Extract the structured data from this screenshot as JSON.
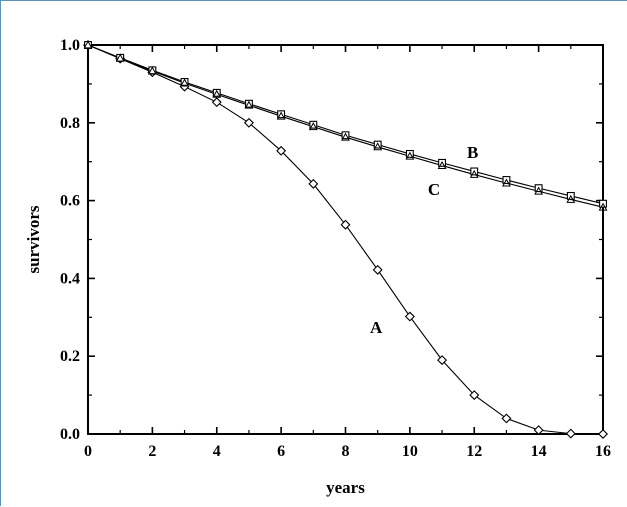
{
  "chart_data": {
    "type": "line",
    "xlabel": "years",
    "ylabel": "survivors",
    "xlim": [
      0,
      16
    ],
    "ylim": [
      0,
      1
    ],
    "x_ticks": [
      "0",
      "2",
      "4",
      "6",
      "8",
      "10",
      "12",
      "14",
      "16"
    ],
    "y_ticks": [
      "0.0",
      "0.2",
      "0.4",
      "0.6",
      "0.8",
      "1.0"
    ],
    "grid": false,
    "legend": "none",
    "x": [
      0,
      1,
      2,
      3,
      4,
      5,
      6,
      7,
      8,
      9,
      10,
      11,
      12,
      13,
      14,
      15,
      16
    ],
    "series": [
      {
        "name": "A",
        "marker": "diamond",
        "values": [
          1.0,
          0.965,
          0.93,
          0.893,
          0.853,
          0.8,
          0.728,
          0.643,
          0.538,
          0.422,
          0.302,
          0.19,
          0.1,
          0.04,
          0.01,
          0.001,
          0.0
        ]
      },
      {
        "name": "B",
        "marker": "square",
        "values": [
          1.0,
          0.967,
          0.935,
          0.905,
          0.877,
          0.849,
          0.822,
          0.795,
          0.768,
          0.744,
          0.72,
          0.697,
          0.675,
          0.653,
          0.632,
          0.612,
          0.592
        ]
      },
      {
        "name": "C",
        "marker": "triangle",
        "values": [
          1.0,
          0.966,
          0.933,
          0.902,
          0.873,
          0.845,
          0.817,
          0.79,
          0.763,
          0.738,
          0.714,
          0.69,
          0.667,
          0.645,
          0.624,
          0.603,
          0.583
        ]
      }
    ],
    "annotations": [
      "A",
      "B",
      "C"
    ]
  }
}
